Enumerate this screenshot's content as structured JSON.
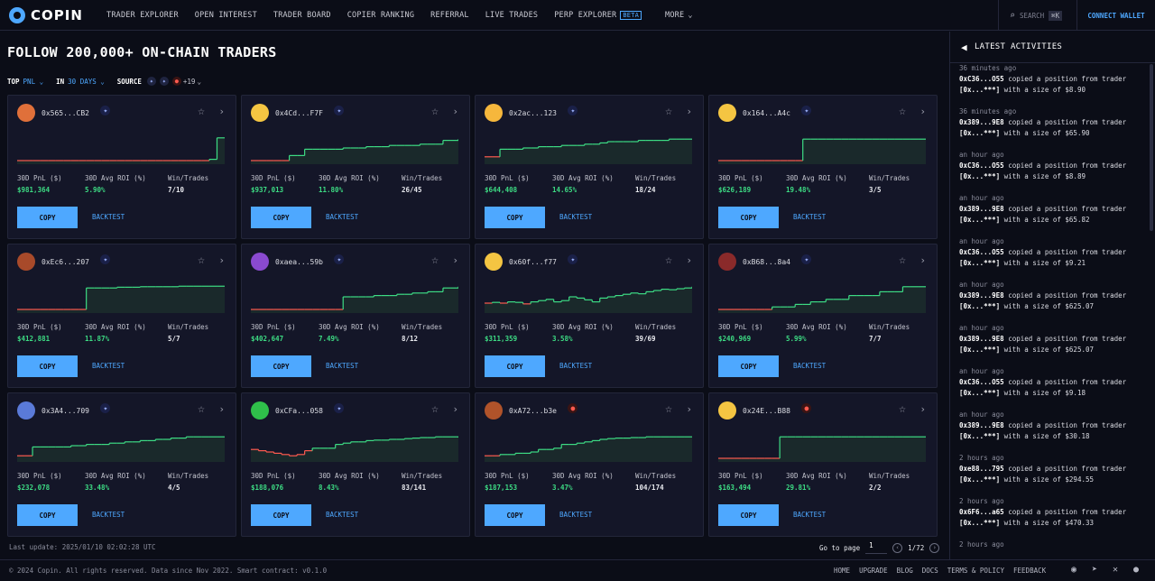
{
  "brand": {
    "name": "COPIN"
  },
  "nav": {
    "items": [
      "TRADER EXPLORER",
      "OPEN INTEREST",
      "TRADER BOARD",
      "COPIER RANKING",
      "REFERRAL",
      "LIVE TRADES",
      "PERP EXPLORER"
    ],
    "beta": "BETA",
    "more": "MORE"
  },
  "search": {
    "placeholder": "SEARCH",
    "shortcut": "⌘K"
  },
  "connect_label": "CONNECT WALLET",
  "page_title": "FOLLOW 200,000+ ON-CHAIN TRADERS",
  "filters": {
    "top_label": "TOP",
    "top_value": "PNL",
    "in_label": "IN",
    "in_value": "30 DAYS",
    "source_label": "SOURCE",
    "source_more": "+19"
  },
  "stat_labels": {
    "pnl": "30D PnL ($)",
    "roi": "30D Avg ROI (%)",
    "wt": "Win/Trades"
  },
  "copy_label": "COPY",
  "backtest_label": "BACKTEST",
  "colors": {
    "accent": "#4ea8ff",
    "green": "#3ddc84",
    "red": "#ff5a4f",
    "bg": "#0b0d17",
    "card": "#141628"
  },
  "traders": [
    {
      "address": "0x565...CB2",
      "pnl": "$981,364",
      "roi": "5.90%",
      "wt": "7/10",
      "avatar": "#e0703a",
      "source": "blue",
      "profile": [
        0.0,
        0,
        0,
        0,
        0,
        0,
        0,
        0,
        0,
        0,
        0,
        0,
        0,
        0,
        0,
        0,
        0,
        0,
        0,
        0,
        0,
        0,
        0,
        0,
        0,
        0.05,
        0.9,
        0.9
      ]
    },
    {
      "address": "0x4Cd...F7F",
      "pnl": "$937,013",
      "roi": "11.80%",
      "wt": "26/45",
      "avatar": "#f4c542",
      "source": "blue",
      "profile": [
        0.0,
        0,
        0,
        0,
        0,
        0.2,
        0.2,
        0.45,
        0.45,
        0.45,
        0.45,
        0.45,
        0.5,
        0.5,
        0.5,
        0.55,
        0.55,
        0.55,
        0.6,
        0.6,
        0.6,
        0.6,
        0.65,
        0.65,
        0.65,
        0.8,
        0.8,
        0.85
      ]
    },
    {
      "address": "0x2ac...123",
      "pnl": "$644,408",
      "roi": "14.65%",
      "wt": "18/24",
      "avatar": "#f6b73c",
      "source": "blue",
      "profile": [
        0.15,
        0.15,
        0.45,
        0.45,
        0.45,
        0.5,
        0.5,
        0.55,
        0.55,
        0.55,
        0.6,
        0.6,
        0.6,
        0.65,
        0.65,
        0.7,
        0.75,
        0.75,
        0.75,
        0.75,
        0.8,
        0.8,
        0.8,
        0.8,
        0.85,
        0.85,
        0.85,
        0.85
      ]
    },
    {
      "address": "0x164...A4c",
      "pnl": "$626,189",
      "roi": "19.48%",
      "wt": "3/5",
      "avatar": "#f4c542",
      "source": "blue",
      "profile": [
        0.0,
        0,
        0,
        0,
        0,
        0,
        0,
        0,
        0,
        0,
        0,
        0.85,
        0.85,
        0.85,
        0.85,
        0.85,
        0.85,
        0.85,
        0.85,
        0.85,
        0.85,
        0.85,
        0.85,
        0.85,
        0.85,
        0.85,
        0.85,
        0.85
      ]
    },
    {
      "address": "0xEc6...207",
      "pnl": "$412,881",
      "roi": "11.87%",
      "wt": "5/7",
      "avatar": "#a84a2a",
      "source": "blue",
      "profile": [
        0.0,
        0,
        0,
        0,
        0,
        0,
        0,
        0,
        0,
        0.85,
        0.85,
        0.85,
        0.85,
        0.88,
        0.88,
        0.88,
        0.9,
        0.9,
        0.9,
        0.9,
        0.9,
        0.92,
        0.92,
        0.92,
        0.92,
        0.92,
        0.92,
        0.92
      ]
    },
    {
      "address": "0xaea...59b",
      "pnl": "$402,647",
      "roi": "7.49%",
      "wt": "8/12",
      "avatar": "#8a4ad0",
      "source": "blue",
      "profile": [
        0.0,
        0,
        0,
        0,
        0,
        0,
        0,
        0,
        0,
        0,
        0,
        0,
        0.5,
        0.5,
        0.5,
        0.5,
        0.55,
        0.55,
        0.55,
        0.6,
        0.6,
        0.65,
        0.65,
        0.7,
        0.7,
        0.85,
        0.85,
        0.9
      ]
    },
    {
      "address": "0x60f...f77",
      "pnl": "$311,359",
      "roi": "3.58%",
      "wt": "39/69",
      "avatar": "#f4c542",
      "source": "blue",
      "profile": [
        0.25,
        0.28,
        0.25,
        0.3,
        0.28,
        0.22,
        0.3,
        0.35,
        0.4,
        0.3,
        0.35,
        0.5,
        0.45,
        0.38,
        0.3,
        0.45,
        0.5,
        0.55,
        0.6,
        0.65,
        0.62,
        0.7,
        0.75,
        0.8,
        0.78,
        0.82,
        0.85,
        0.9
      ]
    },
    {
      "address": "0xB68...8a4",
      "pnl": "$240,969",
      "roi": "5.99%",
      "wt": "7/7",
      "avatar": "#8a2a2a",
      "source": "blue",
      "profile": [
        0.0,
        0,
        0,
        0,
        0,
        0,
        0,
        0.1,
        0.1,
        0.1,
        0.2,
        0.2,
        0.3,
        0.3,
        0.4,
        0.4,
        0.4,
        0.55,
        0.55,
        0.55,
        0.55,
        0.7,
        0.7,
        0.7,
        0.9,
        0.9,
        0.9,
        0.9
      ]
    },
    {
      "address": "0x3A4...709",
      "pnl": "$232,078",
      "roi": "33.48%",
      "wt": "4/5",
      "avatar": "#5a7ad8",
      "source": "blue",
      "profile": [
        0.1,
        0.1,
        0.45,
        0.45,
        0.45,
        0.45,
        0.45,
        0.5,
        0.5,
        0.55,
        0.55,
        0.55,
        0.6,
        0.6,
        0.65,
        0.65,
        0.7,
        0.7,
        0.75,
        0.75,
        0.8,
        0.8,
        0.85,
        0.85,
        0.85,
        0.85,
        0.85,
        0.85
      ]
    },
    {
      "address": "0xCFa...058",
      "pnl": "$188,076",
      "roi": "8.43%",
      "wt": "83/141",
      "avatar": "#2fbf4a",
      "source": "blue",
      "profile": [
        0.35,
        0.3,
        0.25,
        0.2,
        0.15,
        0.1,
        0.15,
        0.3,
        0.4,
        0.4,
        0.4,
        0.55,
        0.6,
        0.65,
        0.65,
        0.7,
        0.72,
        0.72,
        0.75,
        0.75,
        0.78,
        0.8,
        0.82,
        0.82,
        0.85,
        0.85,
        0.85,
        0.82
      ]
    },
    {
      "address": "0xA72...b3e",
      "pnl": "$187,153",
      "roi": "3.47%",
      "wt": "104/174",
      "avatar": "#b0532a",
      "source": "red",
      "profile": [
        0.1,
        0.1,
        0.15,
        0.15,
        0.2,
        0.2,
        0.25,
        0.35,
        0.35,
        0.4,
        0.55,
        0.55,
        0.6,
        0.65,
        0.7,
        0.75,
        0.78,
        0.8,
        0.8,
        0.82,
        0.82,
        0.85,
        0.85,
        0.85,
        0.85,
        0.85,
        0.85,
        0.85
      ]
    },
    {
      "address": "0x24E...B88",
      "pnl": "$163,494",
      "roi": "29.81%",
      "wt": "2/2",
      "avatar": "#f4c542",
      "source": "red",
      "profile": [
        0.0,
        0,
        0,
        0,
        0,
        0,
        0,
        0,
        0.85,
        0.85,
        0.85,
        0.85,
        0.85,
        0.85,
        0.85,
        0.85,
        0.85,
        0.85,
        0.85,
        0.85,
        0.85,
        0.85,
        0.85,
        0.85,
        0.85,
        0.85,
        0.85,
        0.85
      ]
    }
  ],
  "footer_bar": {
    "last_update": "Last update: 2025/01/10 02:02:28 UTC",
    "goto": "Go to page",
    "page": "1",
    "of": "1/72"
  },
  "footer": {
    "copyright": "© 2024 Copin. All rights reserved. Data since Nov 2022. Smart contract: v0.1.0",
    "links": [
      "HOME",
      "UPGRADE",
      "BLOG",
      "DOCS",
      "TERMS & POLICY",
      "FEEDBACK"
    ]
  },
  "sidebar": {
    "title": "LATEST ACTIVITIES",
    "activities": [
      {
        "time": "36 minutes ago",
        "copier": "0xC36...O55",
        "text": "copied a position from trader",
        "trader": "[0x...***]",
        "size": "with a size of $8.90"
      },
      {
        "time": "36 minutes ago",
        "copier": "0x389...9E8",
        "text": "copied a position from trader",
        "trader": "[0x...***]",
        "size": "with a size of $65.90"
      },
      {
        "time": "an hour ago",
        "copier": "0xC36...O55",
        "text": "copied a position from trader",
        "trader": "[0x...***]",
        "size": "with a size of $8.89"
      },
      {
        "time": "an hour ago",
        "copier": "0x389...9E8",
        "text": "copied a position from trader",
        "trader": "[0x...***]",
        "size": "with a size of $65.82"
      },
      {
        "time": "an hour ago",
        "copier": "0xC36...O55",
        "text": "copied a position from trader",
        "trader": "[0x...***]",
        "size": "with a size of $9.21"
      },
      {
        "time": "an hour ago",
        "copier": "0x389...9E8",
        "text": "copied a position from trader",
        "trader": "[0x...***]",
        "size": "with a size of $625.07"
      },
      {
        "time": "an hour ago",
        "copier": "0x389...9E8",
        "text": "copied a position from trader",
        "trader": "[0x...***]",
        "size": "with a size of $625.07"
      },
      {
        "time": "an hour ago",
        "copier": "0xC36...O55",
        "text": "copied a position from trader",
        "trader": "[0x...***]",
        "size": "with a size of $9.18"
      },
      {
        "time": "an hour ago",
        "copier": "0x389...9E8",
        "text": "copied a position from trader",
        "trader": "[0x...***]",
        "size": "with a size of $30.18"
      },
      {
        "time": "2 hours ago",
        "copier": "0xe88...795",
        "text": "copied a position from trader",
        "trader": "[0x...***]",
        "size": "with a size of $294.55"
      },
      {
        "time": "2 hours ago",
        "copier": "0x6F6...a65",
        "text": "copied a position from trader",
        "trader": "[0x...***]",
        "size": "with a size of $470.33"
      },
      {
        "time": "2 hours ago",
        "copier": "",
        "text": "",
        "trader": "",
        "size": ""
      }
    ]
  }
}
